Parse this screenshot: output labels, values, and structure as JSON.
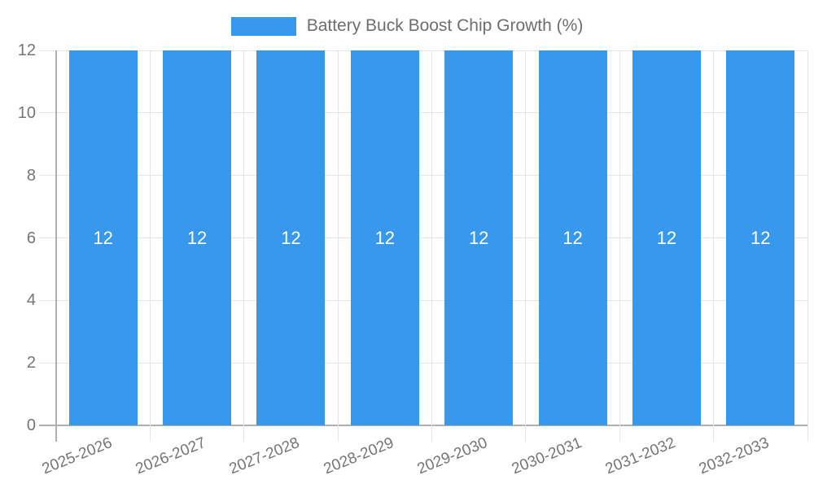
{
  "legend": {
    "label": "Battery Buck Boost Chip Growth (%)"
  },
  "chart_data": {
    "type": "bar",
    "title": "Battery Buck Boost Chip Growth (%)",
    "categories": [
      "2025-2026",
      "2026-2027",
      "2027-2028",
      "2028-2029",
      "2029-2030",
      "2030-2031",
      "2031-2032",
      "2032-2033"
    ],
    "values": [
      12,
      12,
      12,
      12,
      12,
      12,
      12,
      12
    ],
    "bar_labels": [
      "12",
      "12",
      "12",
      "12",
      "12",
      "12",
      "12",
      "12"
    ],
    "xlabel": "",
    "ylabel": "",
    "ylim": [
      0,
      12
    ],
    "yticks": [
      0,
      2,
      4,
      6,
      8,
      10,
      12
    ],
    "grid": true,
    "legend_position": "top-center",
    "colors": {
      "bar": "#3899ec",
      "grid": "#e5e5e5",
      "axis": "#b0b0b0",
      "tick_text": "#757575",
      "title_text": "#6e6e6e",
      "bar_label_text": "#ffffff",
      "background": "#ffffff"
    }
  }
}
